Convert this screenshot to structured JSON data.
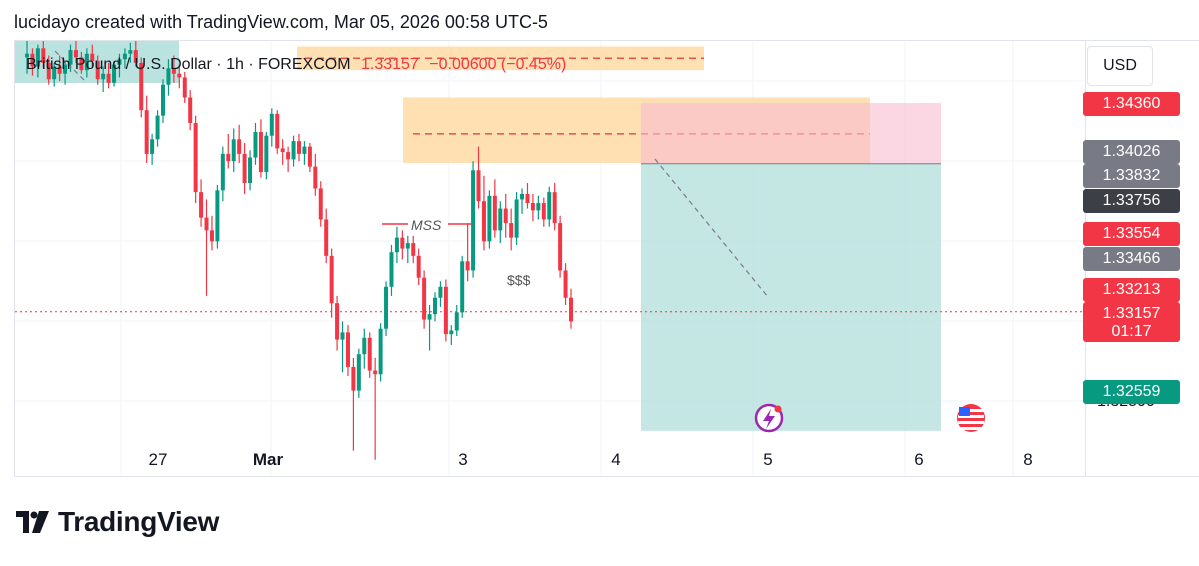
{
  "header": {
    "attribution": "lucidayo created with TradingView.com, Mar 05, 2026 00:58 UTC-5"
  },
  "symbol": {
    "name": "British Pound / U.S. Dollar · 1h · FOREXCOM",
    "price": "1.33157",
    "change": "−0.00600 (−0.45%)"
  },
  "currency": "USD",
  "price_labels": [
    {
      "text": "1.34360",
      "style": "red"
    },
    {
      "text": "1.34026",
      "style": "grey"
    },
    {
      "text": "1.33832",
      "style": "grey"
    },
    {
      "text": "1.33756",
      "style": "dark"
    },
    {
      "text": "1.33554",
      "style": "red"
    },
    {
      "text": "1.33466",
      "style": "grey"
    },
    {
      "text": "1.33213",
      "style": "red"
    },
    {
      "text": "1.32559",
      "style": "green"
    }
  ],
  "current_price_label": {
    "price": "1.33157",
    "countdown": "01:17"
  },
  "hidden_tick": "1.32500",
  "time_axis": [
    {
      "label": "27",
      "bold": false
    },
    {
      "label": "Mar",
      "bold": true
    },
    {
      "label": "3",
      "bold": false
    },
    {
      "label": "4",
      "bold": false
    },
    {
      "label": "5",
      "bold": false
    },
    {
      "label": "6",
      "bold": false
    },
    {
      "label": "8",
      "bold": false
    }
  ],
  "annotations": {
    "mss": "MSS",
    "liquidity": "$$$"
  },
  "branding": {
    "wordmark": "TradingView"
  },
  "colors": {
    "up": "#089981",
    "down": "#f23645",
    "supply_zone": "#ffe0b2",
    "stop_zone": "#f8bbd0",
    "target_zone": "#b2dfdb",
    "dashed_line": "#e0534d"
  },
  "chart_data": {
    "type": "candlestick",
    "instrument": "GBPUSD",
    "timeframe": "1h",
    "ylim": [
      1.323,
      1.347
    ],
    "grid": true,
    "price_levels": {
      "current": 1.33157,
      "dotted_line": 1.33213
    },
    "position_tool": {
      "type": "short",
      "entry": 1.34026,
      "stop": 1.3436,
      "target": 1.32559
    },
    "zones": [
      {
        "kind": "supply",
        "top": 1.3467,
        "bottom": 1.3454,
        "mid": 1.34605
      },
      {
        "kind": "supply",
        "top": 1.3439,
        "bottom": 1.3403,
        "mid": 1.3419
      }
    ],
    "candles": [
      [
        1.3461,
        1.347,
        1.3452,
        1.3463
      ],
      [
        1.3463,
        1.3466,
        1.3451,
        1.3456
      ],
      [
        1.3456,
        1.3468,
        1.345,
        1.3466
      ],
      [
        1.3466,
        1.347,
        1.3455,
        1.3458
      ],
      [
        1.3458,
        1.3462,
        1.3446,
        1.3449
      ],
      [
        1.3449,
        1.3458,
        1.3445,
        1.3456
      ],
      [
        1.3456,
        1.3462,
        1.3448,
        1.3452
      ],
      [
        1.3452,
        1.3459,
        1.3446,
        1.3457
      ],
      [
        1.3457,
        1.3468,
        1.3453,
        1.3465
      ],
      [
        1.3465,
        1.347,
        1.3458,
        1.3461
      ],
      [
        1.3461,
        1.3464,
        1.3452,
        1.3454
      ],
      [
        1.3454,
        1.3466,
        1.345,
        1.3463
      ],
      [
        1.3463,
        1.3468,
        1.3455,
        1.3459
      ],
      [
        1.3459,
        1.3462,
        1.3446,
        1.3449
      ],
      [
        1.3449,
        1.3456,
        1.3442,
        1.3452
      ],
      [
        1.3452,
        1.3458,
        1.3444,
        1.3447
      ],
      [
        1.3447,
        1.3459,
        1.3445,
        1.3457
      ],
      [
        1.3457,
        1.3463,
        1.345,
        1.346
      ],
      [
        1.346,
        1.3466,
        1.3455,
        1.3463
      ],
      [
        1.3463,
        1.3469,
        1.3458,
        1.3465
      ],
      [
        1.3465,
        1.347,
        1.3456,
        1.3458
      ],
      [
        1.3458,
        1.3461,
        1.3428,
        1.3432
      ],
      [
        1.3432,
        1.344,
        1.3403,
        1.3408
      ],
      [
        1.3408,
        1.3419,
        1.3402,
        1.3416
      ],
      [
        1.3416,
        1.3432,
        1.3412,
        1.3429
      ],
      [
        1.3429,
        1.3449,
        1.3425,
        1.3446
      ],
      [
        1.3446,
        1.346,
        1.344,
        1.3455
      ],
      [
        1.3455,
        1.3462,
        1.3447,
        1.3452
      ],
      [
        1.3452,
        1.3457,
        1.3444,
        1.345
      ],
      [
        1.345,
        1.3453,
        1.3436,
        1.3439
      ],
      [
        1.3439,
        1.3443,
        1.3421,
        1.3425
      ],
      [
        1.3425,
        1.3429,
        1.3381,
        1.3387
      ],
      [
        1.3387,
        1.3394,
        1.3368,
        1.3373
      ],
      [
        1.3373,
        1.3383,
        1.333,
        1.3366
      ],
      [
        1.3366,
        1.3374,
        1.3355,
        1.336
      ],
      [
        1.336,
        1.3391,
        1.3356,
        1.3388
      ],
      [
        1.3388,
        1.3412,
        1.3382,
        1.3408
      ],
      [
        1.3408,
        1.3419,
        1.34,
        1.3404
      ],
      [
        1.3404,
        1.3422,
        1.3398,
        1.3416
      ],
      [
        1.3416,
        1.3424,
        1.3403,
        1.3408
      ],
      [
        1.3408,
        1.3414,
        1.3386,
        1.3392
      ],
      [
        1.3392,
        1.341,
        1.3388,
        1.3406
      ],
      [
        1.3406,
        1.3425,
        1.3402,
        1.342
      ],
      [
        1.342,
        1.3427,
        1.3395,
        1.3398
      ],
      [
        1.3398,
        1.342,
        1.3394,
        1.3418
      ],
      [
        1.3418,
        1.3433,
        1.3412,
        1.343
      ],
      [
        1.343,
        1.3432,
        1.3408,
        1.3411
      ],
      [
        1.3411,
        1.3416,
        1.3402,
        1.3409
      ],
      [
        1.3409,
        1.3412,
        1.3398,
        1.3405
      ],
      [
        1.3405,
        1.3418,
        1.3401,
        1.3415
      ],
      [
        1.3415,
        1.3419,
        1.3404,
        1.3408
      ],
      [
        1.3408,
        1.3415,
        1.3402,
        1.3412
      ],
      [
        1.3412,
        1.3414,
        1.3398,
        1.3401
      ],
      [
        1.3401,
        1.3408,
        1.3385,
        1.3389
      ],
      [
        1.3389,
        1.3393,
        1.3368,
        1.3372
      ],
      [
        1.3372,
        1.3378,
        1.3348,
        1.3352
      ],
      [
        1.3352,
        1.3356,
        1.3318,
        1.3326
      ],
      [
        1.3326,
        1.333,
        1.33,
        1.3306
      ],
      [
        1.3306,
        1.3316,
        1.3288,
        1.331
      ],
      [
        1.331,
        1.3314,
        1.3286,
        1.3291
      ],
      [
        1.3291,
        1.3296,
        1.3245,
        1.3278
      ],
      [
        1.3278,
        1.3301,
        1.3274,
        1.3298
      ],
      [
        1.3298,
        1.3312,
        1.329,
        1.3307
      ],
      [
        1.3307,
        1.331,
        1.3285,
        1.3289
      ],
      [
        1.3289,
        1.3296,
        1.324,
        1.3287
      ],
      [
        1.3287,
        1.3315,
        1.3283,
        1.3312
      ],
      [
        1.3312,
        1.3338,
        1.3308,
        1.3335
      ],
      [
        1.3335,
        1.3358,
        1.333,
        1.3354
      ],
      [
        1.3354,
        1.3368,
        1.3348,
        1.3362
      ],
      [
        1.3362,
        1.3366,
        1.335,
        1.3356
      ],
      [
        1.3356,
        1.3363,
        1.3348,
        1.3359
      ],
      [
        1.3359,
        1.3363,
        1.3348,
        1.3352
      ],
      [
        1.3352,
        1.3356,
        1.3336,
        1.334
      ],
      [
        1.334,
        1.3344,
        1.3312,
        1.3317
      ],
      [
        1.3317,
        1.3325,
        1.33,
        1.332
      ],
      [
        1.332,
        1.3332,
        1.3316,
        1.3329
      ],
      [
        1.3329,
        1.3338,
        1.3324,
        1.3335
      ],
      [
        1.3335,
        1.3339,
        1.3305,
        1.3309
      ],
      [
        1.3309,
        1.3314,
        1.3303,
        1.3311
      ],
      [
        1.3311,
        1.3325,
        1.3308,
        1.3321
      ],
      [
        1.3321,
        1.3352,
        1.3318,
        1.3349
      ],
      [
        1.3349,
        1.337,
        1.3338,
        1.3344
      ],
      [
        1.3344,
        1.3404,
        1.334,
        1.3399
      ],
      [
        1.3399,
        1.3412,
        1.3378,
        1.3382
      ],
      [
        1.3382,
        1.3396,
        1.3355,
        1.336
      ],
      [
        1.336,
        1.3388,
        1.3356,
        1.3385
      ],
      [
        1.3385,
        1.3394,
        1.3362,
        1.3366
      ],
      [
        1.3366,
        1.3382,
        1.3359,
        1.3378
      ],
      [
        1.3378,
        1.3386,
        1.3362,
        1.337
      ],
      [
        1.337,
        1.3378,
        1.3355,
        1.3362
      ],
      [
        1.3362,
        1.3387,
        1.3358,
        1.3383
      ],
      [
        1.3383,
        1.3389,
        1.3375,
        1.3386
      ],
      [
        1.3386,
        1.3392,
        1.3378,
        1.3381
      ],
      [
        1.3381,
        1.3386,
        1.3371,
        1.3377
      ],
      [
        1.3377,
        1.3385,
        1.3372,
        1.3381
      ],
      [
        1.3381,
        1.3384,
        1.3368,
        1.3372
      ],
      [
        1.3372,
        1.339,
        1.3368,
        1.3387
      ],
      [
        1.3387,
        1.3392,
        1.3366,
        1.337
      ],
      [
        1.337,
        1.3374,
        1.334,
        1.3344
      ],
      [
        1.3344,
        1.3348,
        1.3325,
        1.3329
      ],
      [
        1.3329,
        1.3334,
        1.3312,
        1.3316
      ]
    ]
  }
}
